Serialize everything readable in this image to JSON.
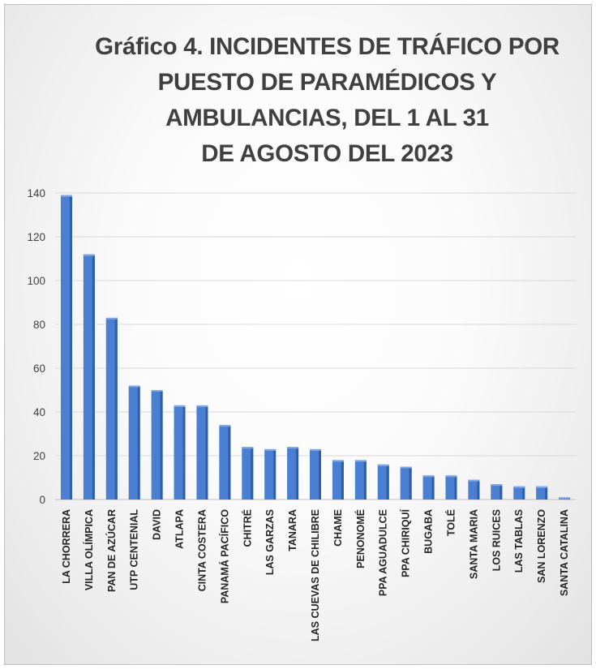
{
  "chart_data": {
    "type": "bar",
    "title_lines": [
      "Gráfico 4. INCIDENTES DE TRÁFICO POR",
      "PUESTO DE PARAMÉDICOS Y",
      "AMBULANCIAS, DEL 1 AL 31",
      "DE AGOSTO DEL 2023"
    ],
    "categories": [
      "LA CHORRERA",
      "VILLA OLÍMPICA",
      "PAN DE AZÚCAR",
      "UTP CENTENIAL",
      "DAVID",
      "ATLAPA",
      "CINTA COSTERA",
      "PANAMÁ PACÍFICO",
      "CHITRÉ",
      "LAS GARZAS",
      "TANARA",
      "LAS CUEVAS DE CHILIBRE",
      "CHAME",
      "PENONOMÉ",
      "PPA AGUADULCE",
      "PPA CHIRIQUÍ",
      "BUGABA",
      "TOLÉ",
      "SANTA MARIA",
      "LOS RUICES",
      "LAS TABLAS",
      "SAN LORENZO",
      "SANTA CATALINA"
    ],
    "values": [
      139,
      112,
      83,
      52,
      50,
      43,
      43,
      34,
      24,
      23,
      24,
      23,
      18,
      18,
      16,
      15,
      11,
      11,
      9,
      7,
      6,
      6,
      1
    ],
    "yticks": [
      "0",
      "20",
      "40",
      "60",
      "80",
      "100",
      "120",
      "140"
    ],
    "ylim": [
      0,
      140
    ],
    "grid": true,
    "bar_color": "#4a7fd1"
  }
}
